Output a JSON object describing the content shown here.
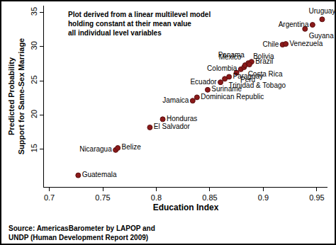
{
  "chart_data": {
    "type": "scatter",
    "x_label": "Education Index",
    "y_label": [
      "Predicted Probability",
      "Support for Same-Sex Marriage"
    ],
    "annotation": [
      "Plot derived from a linear multilevel model",
      "holding constant at their mean value",
      "all individual level variables"
    ],
    "source": [
      "Source: AmericasBarometer by LAPOP and",
      "UNDP (Human Development Report 2009)"
    ],
    "point_labels": [
      "Guatemala",
      "Nicaragua",
      "Belize",
      "El Salvador",
      "Honduras",
      "Jamaica",
      "Dominican Republic",
      "Suriname",
      "Ecuador",
      "Trinidad & Tobago",
      "Paraguay",
      "Peru",
      "Colombia",
      "Costa Rica",
      "Mexico",
      "Panama",
      "Brazil",
      "Bolivia",
      "Chile",
      "Venezuela",
      "Guyana",
      "Argentina",
      "Uruguay"
    ],
    "x": [
      0.727,
      0.762,
      0.764,
      0.794,
      0.806,
      0.834,
      0.838,
      0.848,
      0.86,
      0.864,
      0.868,
      0.875,
      0.879,
      0.882,
      0.883,
      0.886,
      0.889,
      0.887,
      0.918,
      0.921,
      0.939,
      0.946,
      0.955
    ],
    "values": [
      11.2,
      14.9,
      15.2,
      18.2,
      19.4,
      22.1,
      22.6,
      23.7,
      24.8,
      25.3,
      25.6,
      26.2,
      26.7,
      27.0,
      27.3,
      27.6,
      27.8,
      27.4,
      30.3,
      30.4,
      32.6,
      33.2,
      34.0
    ],
    "color": "#8b1a1a",
    "marker": "circle",
    "xlim": [
      0.695,
      0.96
    ],
    "ylim": [
      9.5,
      36
    ],
    "xticks": [
      0.7,
      0.75,
      0.8,
      0.85,
      0.9,
      0.95
    ],
    "yticks": [
      15,
      20,
      25,
      30,
      35
    ],
    "grid": false
  }
}
